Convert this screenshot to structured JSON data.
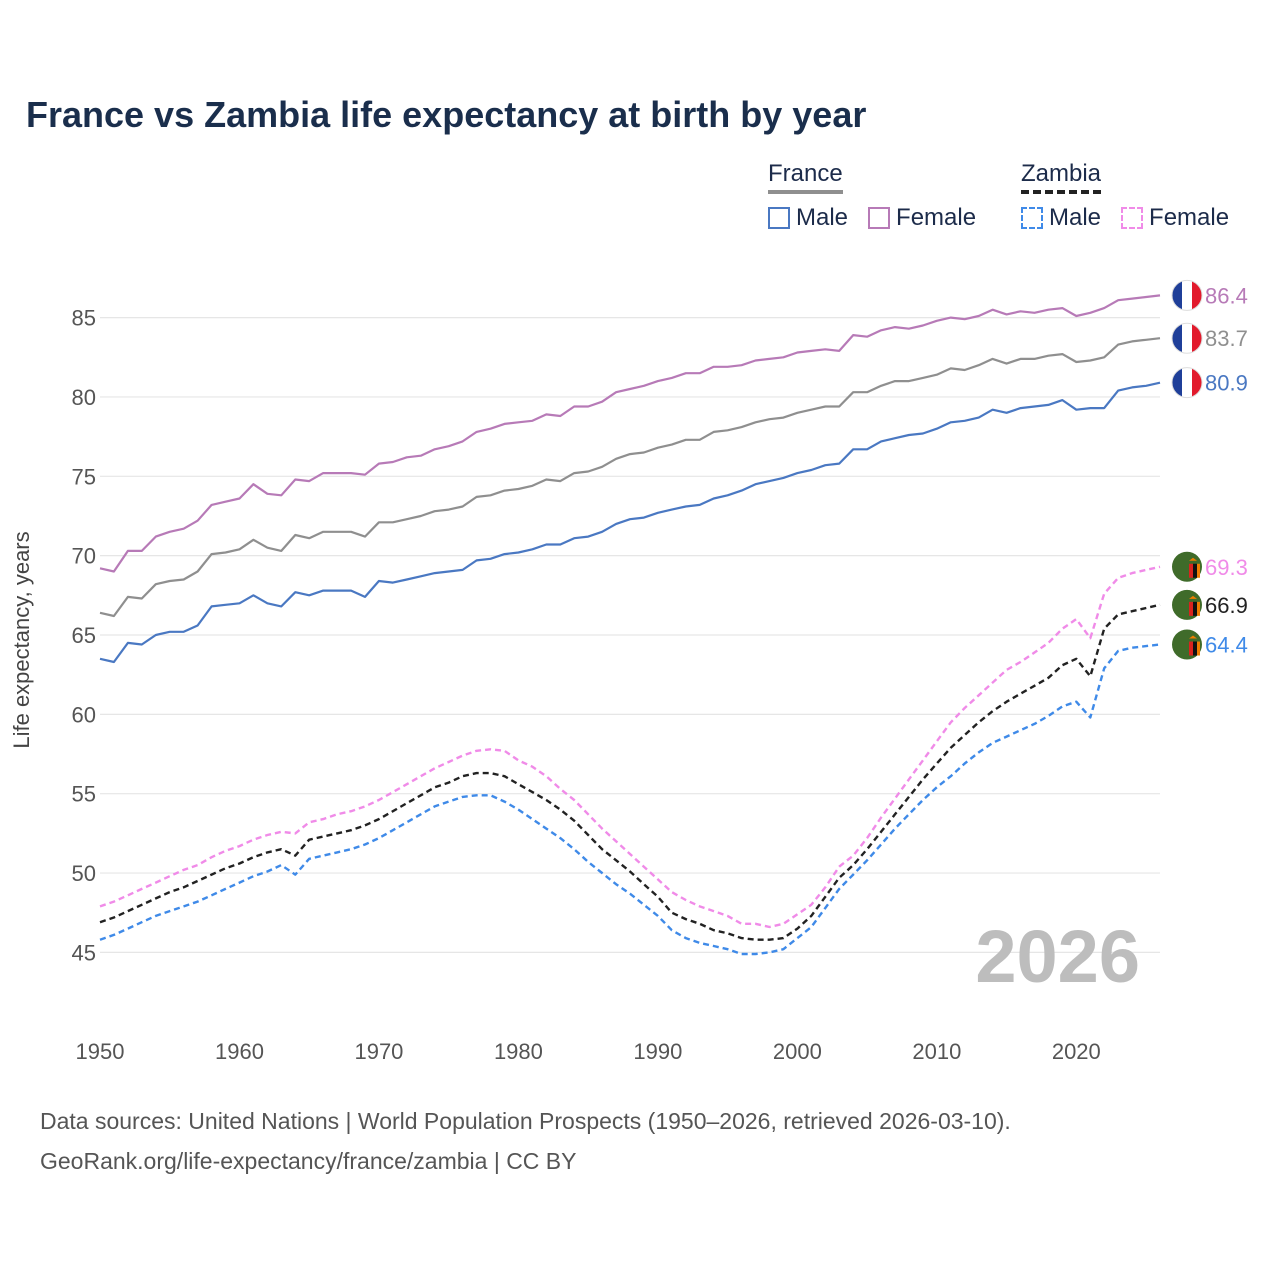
{
  "title": "France vs Zambia life expectancy at birth by year",
  "legend": {
    "groups": [
      {
        "name": "France",
        "items": [
          {
            "label": "Male",
            "color": "#4a78c2"
          },
          {
            "label": "Female",
            "color": "#b77ab7"
          }
        ]
      },
      {
        "name": "Zambia",
        "items": [
          {
            "label": "Male",
            "color": "#3f8ae8"
          },
          {
            "label": "Female",
            "color": "#f08be8"
          }
        ]
      }
    ]
  },
  "footer": {
    "line1": "Data sources: United Nations | World Population Prospects (1950–2026, retrieved 2026-03-10).",
    "line2": "GeoRank.org/life-expectancy/france/zambia | CC BY"
  },
  "chart_data": {
    "type": "line",
    "title": "France vs Zambia life expectancy at birth by year",
    "xlabel": "",
    "ylabel": "Life expectancy, years",
    "xlim": [
      1950,
      2026
    ],
    "ylim": [
      42,
      88
    ],
    "xticks": [
      "1950",
      "1960",
      "1970",
      "1980",
      "1990",
      "2000",
      "2010",
      "2020"
    ],
    "yticks": [
      "45",
      "50",
      "55",
      "60",
      "65",
      "70",
      "75",
      "80",
      "85"
    ],
    "year_label": "2026",
    "grid": true,
    "x": [
      1950,
      1951,
      1952,
      1953,
      1954,
      1955,
      1956,
      1957,
      1958,
      1959,
      1960,
      1961,
      1962,
      1963,
      1964,
      1965,
      1966,
      1967,
      1968,
      1969,
      1970,
      1971,
      1972,
      1973,
      1974,
      1975,
      1976,
      1977,
      1978,
      1979,
      1980,
      1981,
      1982,
      1983,
      1984,
      1985,
      1986,
      1987,
      1988,
      1989,
      1990,
      1991,
      1992,
      1993,
      1994,
      1995,
      1996,
      1997,
      1998,
      1999,
      2000,
      2001,
      2002,
      2003,
      2004,
      2005,
      2006,
      2007,
      2008,
      2009,
      2010,
      2011,
      2012,
      2013,
      2014,
      2015,
      2016,
      2017,
      2018,
      2019,
      2020,
      2021,
      2022,
      2023,
      2024,
      2025,
      2026
    ],
    "series": [
      {
        "name": "France Female",
        "country": "France",
        "sex": "Female",
        "color": "#b77ab7",
        "dash": false,
        "end_label": "86.4",
        "values": [
          69.2,
          69.0,
          70.3,
          70.3,
          71.2,
          71.5,
          71.7,
          72.2,
          73.2,
          73.4,
          73.6,
          74.5,
          73.9,
          73.8,
          74.8,
          74.7,
          75.2,
          75.2,
          75.2,
          75.1,
          75.8,
          75.9,
          76.2,
          76.3,
          76.7,
          76.9,
          77.2,
          77.8,
          78.0,
          78.3,
          78.4,
          78.5,
          78.9,
          78.8,
          79.4,
          79.4,
          79.7,
          80.3,
          80.5,
          80.7,
          81.0,
          81.2,
          81.5,
          81.5,
          81.9,
          81.9,
          82.0,
          82.3,
          82.4,
          82.5,
          82.8,
          82.9,
          83.0,
          82.9,
          83.9,
          83.8,
          84.2,
          84.4,
          84.3,
          84.5,
          84.8,
          85.0,
          84.9,
          85.1,
          85.5,
          85.2,
          85.4,
          85.3,
          85.5,
          85.6,
          85.1,
          85.3,
          85.6,
          86.1,
          86.2,
          86.3,
          86.4
        ]
      },
      {
        "name": "France Total",
        "country": "France",
        "sex": "Total",
        "color": "#8f8f8f",
        "dash": false,
        "end_label": "83.7",
        "values": [
          66.4,
          66.2,
          67.4,
          67.3,
          68.2,
          68.4,
          68.5,
          69.0,
          70.1,
          70.2,
          70.4,
          71.0,
          70.5,
          70.3,
          71.3,
          71.1,
          71.5,
          71.5,
          71.5,
          71.2,
          72.1,
          72.1,
          72.3,
          72.5,
          72.8,
          72.9,
          73.1,
          73.7,
          73.8,
          74.1,
          74.2,
          74.4,
          74.8,
          74.7,
          75.2,
          75.3,
          75.6,
          76.1,
          76.4,
          76.5,
          76.8,
          77.0,
          77.3,
          77.3,
          77.8,
          77.9,
          78.1,
          78.4,
          78.6,
          78.7,
          79.0,
          79.2,
          79.4,
          79.4,
          80.3,
          80.3,
          80.7,
          81.0,
          81.0,
          81.2,
          81.4,
          81.8,
          81.7,
          82.0,
          82.4,
          82.1,
          82.4,
          82.4,
          82.6,
          82.7,
          82.2,
          82.3,
          82.5,
          83.3,
          83.5,
          83.6,
          83.7
        ]
      },
      {
        "name": "France Male",
        "country": "France",
        "sex": "Male",
        "color": "#4a78c2",
        "dash": false,
        "end_label": "80.9",
        "values": [
          63.5,
          63.3,
          64.5,
          64.4,
          65.0,
          65.2,
          65.2,
          65.6,
          66.8,
          66.9,
          67.0,
          67.5,
          67.0,
          66.8,
          67.7,
          67.5,
          67.8,
          67.8,
          67.8,
          67.4,
          68.4,
          68.3,
          68.5,
          68.7,
          68.9,
          69.0,
          69.1,
          69.7,
          69.8,
          70.1,
          70.2,
          70.4,
          70.7,
          70.7,
          71.1,
          71.2,
          71.5,
          72.0,
          72.3,
          72.4,
          72.7,
          72.9,
          73.1,
          73.2,
          73.6,
          73.8,
          74.1,
          74.5,
          74.7,
          74.9,
          75.2,
          75.4,
          75.7,
          75.8,
          76.7,
          76.7,
          77.2,
          77.4,
          77.6,
          77.7,
          78.0,
          78.4,
          78.5,
          78.7,
          79.2,
          79.0,
          79.3,
          79.4,
          79.5,
          79.8,
          79.2,
          79.3,
          79.3,
          80.4,
          80.6,
          80.7,
          80.9
        ]
      },
      {
        "name": "Zambia Female",
        "country": "Zambia",
        "sex": "Female",
        "color": "#f08be8",
        "dash": true,
        "end_label": "69.3",
        "values": [
          47.9,
          48.2,
          48.6,
          49.0,
          49.4,
          49.8,
          50.2,
          50.5,
          51.0,
          51.4,
          51.7,
          52.1,
          52.4,
          52.6,
          52.5,
          53.2,
          53.4,
          53.7,
          53.9,
          54.2,
          54.6,
          55.1,
          55.6,
          56.1,
          56.6,
          57.0,
          57.4,
          57.7,
          57.8,
          57.7,
          57.1,
          56.7,
          56.1,
          55.3,
          54.6,
          53.7,
          52.8,
          52.0,
          51.2,
          50.4,
          49.6,
          48.8,
          48.3,
          47.9,
          47.6,
          47.3,
          46.8,
          46.8,
          46.6,
          46.8,
          47.4,
          48.0,
          49.1,
          50.4,
          51.1,
          52.2,
          53.5,
          54.7,
          55.9,
          57.1,
          58.3,
          59.5,
          60.4,
          61.2,
          62.0,
          62.8,
          63.3,
          63.9,
          64.5,
          65.4,
          66.0,
          64.8,
          67.6,
          68.6,
          68.9,
          69.1,
          69.3
        ]
      },
      {
        "name": "Zambia Total",
        "country": "Zambia",
        "sex": "Total",
        "color": "#222222",
        "dash": true,
        "end_label": "66.9",
        "values": [
          46.9,
          47.2,
          47.6,
          48.0,
          48.4,
          48.8,
          49.1,
          49.5,
          49.9,
          50.3,
          50.6,
          51.0,
          51.3,
          51.5,
          51.1,
          52.1,
          52.3,
          52.5,
          52.7,
          53.0,
          53.4,
          53.9,
          54.4,
          54.9,
          55.4,
          55.7,
          56.1,
          56.3,
          56.3,
          56.1,
          55.6,
          55.1,
          54.6,
          54.0,
          53.3,
          52.4,
          51.5,
          50.8,
          50.1,
          49.3,
          48.5,
          47.5,
          47.1,
          46.8,
          46.4,
          46.2,
          45.9,
          45.8,
          45.8,
          45.9,
          46.5,
          47.3,
          48.5,
          49.7,
          50.5,
          51.5,
          52.6,
          53.7,
          54.8,
          55.9,
          56.9,
          57.9,
          58.7,
          59.5,
          60.2,
          60.8,
          61.3,
          61.8,
          62.3,
          63.1,
          63.5,
          62.4,
          65.4,
          66.3,
          66.5,
          66.7,
          66.9
        ]
      },
      {
        "name": "Zambia Male",
        "country": "Zambia",
        "sex": "Male",
        "color": "#3f8ae8",
        "dash": true,
        "end_label": "64.4",
        "values": [
          45.8,
          46.1,
          46.5,
          46.9,
          47.3,
          47.6,
          47.9,
          48.2,
          48.6,
          49.0,
          49.4,
          49.8,
          50.1,
          50.5,
          49.9,
          50.9,
          51.1,
          51.3,
          51.5,
          51.8,
          52.2,
          52.7,
          53.2,
          53.7,
          54.2,
          54.5,
          54.8,
          54.9,
          54.9,
          54.5,
          54.0,
          53.4,
          52.8,
          52.2,
          51.5,
          50.7,
          50.0,
          49.3,
          48.7,
          48.0,
          47.3,
          46.4,
          45.9,
          45.6,
          45.4,
          45.2,
          44.9,
          44.9,
          45.0,
          45.2,
          45.9,
          46.6,
          47.8,
          49.0,
          49.9,
          50.8,
          51.8,
          52.8,
          53.7,
          54.6,
          55.4,
          56.1,
          56.9,
          57.6,
          58.2,
          58.6,
          59.0,
          59.4,
          59.9,
          60.5,
          60.8,
          59.8,
          62.9,
          64.0,
          64.2,
          64.3,
          64.4
        ]
      }
    ]
  }
}
